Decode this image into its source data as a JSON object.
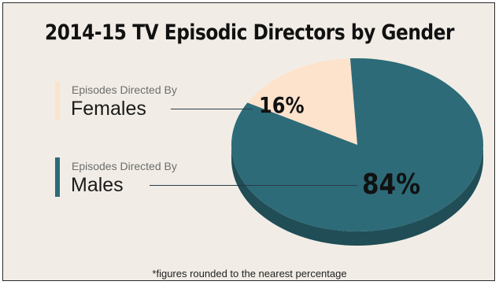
{
  "chart_data": {
    "type": "pie",
    "title": "2014-15 TV Episodic Directors by Gender",
    "slices": [
      {
        "prefix": "Episodes Directed By",
        "label": "Females",
        "value": 16,
        "display": "16%",
        "color": "#fde2cc"
      },
      {
        "prefix": "Episodes Directed By",
        "label": "Males",
        "value": 84,
        "display": "84%",
        "color": "#2d6b78"
      }
    ],
    "footnote": "*figures rounded to the nearest percentage"
  }
}
